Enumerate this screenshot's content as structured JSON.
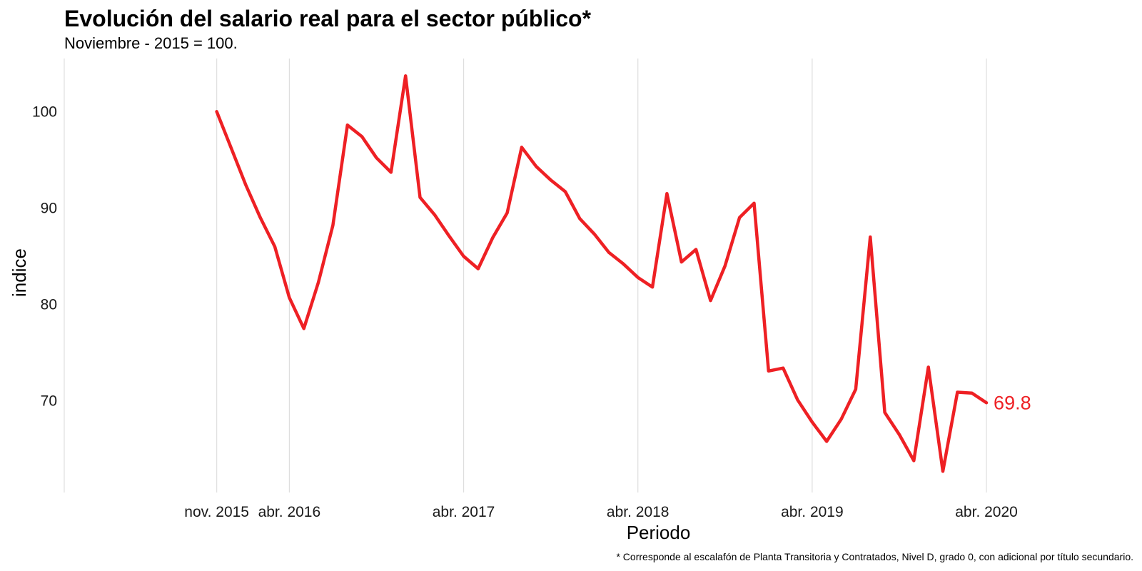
{
  "title": "Evolución del salario real para el sector público*",
  "subtitle": "Noviembre - 2015 = 100.",
  "caption": "* Corresponde al escalafón de Planta Transitoria y Contratados, Nivel D, grado 0, con adicional por título secundario.",
  "colors": {
    "line": "#ee2024",
    "grid": "#dedede",
    "background": "#ffffff"
  },
  "chart_data": {
    "type": "line",
    "xlabel": "Periodo",
    "ylabel": "indice",
    "x_ticks": [
      {
        "label": "nov. 2015",
        "index": 0
      },
      {
        "label": "abr. 2016",
        "index": 5
      },
      {
        "label": "abr. 2017",
        "index": 17
      },
      {
        "label": "abr. 2018",
        "index": 29
      },
      {
        "label": "abr. 2019",
        "index": 41
      },
      {
        "label": "abr. 2020",
        "index": 53
      }
    ],
    "y_ticks": [
      70,
      80,
      90,
      100
    ],
    "ylim": [
      60.5,
      105.5
    ],
    "xlim": [
      -10.5,
      61.5
    ],
    "grid": "vertical-only",
    "series": [
      {
        "x_start": "nov. 2015",
        "frequency": "monthly",
        "values": [
          100.0,
          96.2,
          92.4,
          89.0,
          86.0,
          80.7,
          77.5,
          82.3,
          88.2,
          98.6,
          97.4,
          95.2,
          93.7,
          103.7,
          91.1,
          89.3,
          87.1,
          85.0,
          83.7,
          86.9,
          89.5,
          96.3,
          94.3,
          92.9,
          91.7,
          88.9,
          87.3,
          85.4,
          84.2,
          82.8,
          81.8,
          91.5,
          84.4,
          85.7,
          80.4,
          84.0,
          89.0,
          90.5,
          73.1,
          73.4,
          70.1,
          67.8,
          65.8,
          68.1,
          71.2,
          87.0,
          68.8,
          66.5,
          63.8,
          73.5,
          62.7,
          70.9,
          70.8,
          69.8
        ],
        "end_label": "69.8"
      }
    ]
  }
}
